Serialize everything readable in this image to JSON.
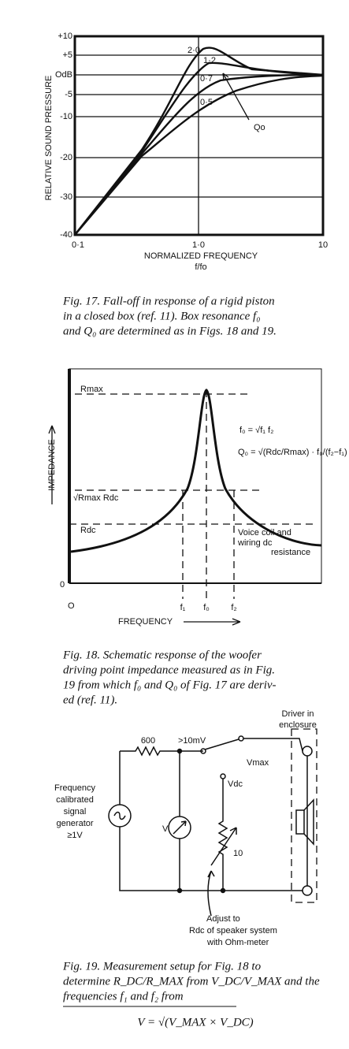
{
  "fig17": {
    "y_ticks": [
      "+10",
      "+5",
      "OdB",
      "-5",
      "-10",
      "-20",
      "-30",
      "-40"
    ],
    "x_ticks": [
      "0·1",
      "1·0",
      "10"
    ],
    "y_label": "RELATIVE SOUND PRESSURE",
    "x_label": "NORMALIZED FREQUENCY",
    "x_unit": "f/fo",
    "curve_labels": [
      "2·0",
      "1·2",
      "0·7",
      "0·5"
    ],
    "q_label": "Qo",
    "caption": [
      "Fig. 17. Fall-off in response of a rigid piston",
      "in a closed box (ref. 11). Box resonance f₀",
      "and Q₀ are determined as in Figs. 18 and 19."
    ]
  },
  "fig18": {
    "rmax": "Rmax",
    "rgeo": "√Rmax Rdc",
    "rdc": "Rdc",
    "formula_f0": "f₀ = √f₁ f₂",
    "formula_q0": "Q₀ = √(Rdc/Rmax) · f₀/(f₂−f₁)",
    "note": [
      "Voice coil and",
      "wiring dc",
      "resistance"
    ],
    "y_label": "IMPEDANCE",
    "origin_y": "0",
    "origin_x": "O",
    "f_ticks": [
      "f₁",
      "f₀",
      "f₂"
    ],
    "x_label": "FREQUENCY",
    "caption": [
      "Fig. 18. Schematic response of the woofer",
      "driving point impedance measured as in Fig.",
      "19 from which f₀ and Q₀ of Fig. 17 are deriv-",
      "ed (ref. 11)."
    ]
  },
  "fig19": {
    "driver": [
      "Driver in",
      "enclosure"
    ],
    "resistor": "600",
    "level": ">10mV",
    "vmax": "Vmax",
    "vdc": "Vdc",
    "generator": [
      "Frequency",
      "calibrated",
      "signal",
      "generator",
      "≥1V"
    ],
    "meter": "V",
    "pot": "10",
    "adjust": [
      "Adjust to",
      "Rdc of speaker system",
      "with Ohm-meter"
    ],
    "caption": [
      "Fig. 19. Measurement setup for Fig. 18 to",
      "determine R_DC/R_MAX from V_DC/V_MAX and the",
      "frequencies f₁ and f₂ from"
    ],
    "formula": "V = √(V_MAX × V_DC)"
  }
}
